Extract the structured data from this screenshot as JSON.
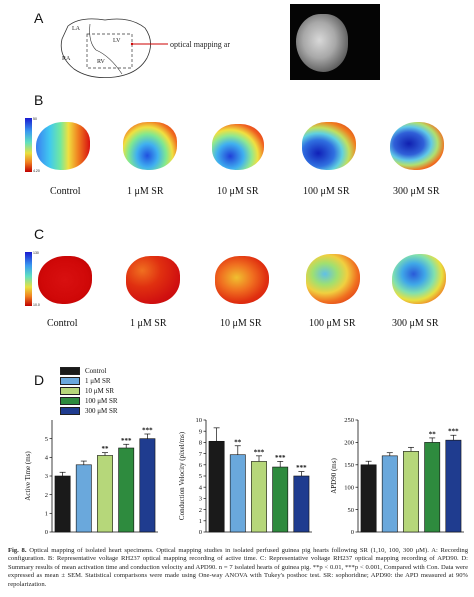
{
  "panels": {
    "a": {
      "letter": "A",
      "labels": {
        "la": "LA",
        "lv": "LV",
        "ra": "RA",
        "rv": "RV",
        "area": "optical mapping area"
      }
    },
    "b": {
      "letter": "B",
      "cbar_top": "50",
      "cbar_bottom": "4.20",
      "conditions": [
        "Control",
        "1 μM SR",
        "10 μM SR",
        "100 μM SR",
        "300 μM SR"
      ]
    },
    "c": {
      "letter": "C",
      "cbar_top": "130",
      "cbar_bottom": "10.0",
      "conditions": [
        "Control",
        "1 μM SR",
        "10 μM SR",
        "100 μM SR",
        "300 μM SR"
      ]
    },
    "d": {
      "letter": "D"
    }
  },
  "legend": [
    "Control",
    "1 μM SR",
    "10 μM SR",
    "100 μM SR",
    "300 μM SR"
  ],
  "colors": [
    "#1a1a1a",
    "#6aa8dc",
    "#b6d77a",
    "#2e8b3e",
    "#1f3c8f"
  ],
  "chart_data": [
    {
      "type": "bar",
      "categories": [
        "Control",
        "1 μM SR",
        "10 μM SR",
        "100 μM SR",
        "300 μM SR"
      ],
      "values": [
        3.0,
        3.6,
        4.1,
        4.5,
        5.0
      ],
      "errors": [
        0.2,
        0.2,
        0.15,
        0.2,
        0.25
      ],
      "significance": [
        "",
        "",
        "**",
        "***",
        "***"
      ],
      "ylabel": "Active Time (ms)",
      "ylim": [
        0,
        6
      ],
      "yticks": [
        "0",
        "1",
        "2",
        "3",
        "4",
        "5"
      ]
    },
    {
      "type": "bar",
      "categories": [
        "Control",
        "1 μM SR",
        "10 μM SR",
        "100 μM SR",
        "300 μM SR"
      ],
      "values": [
        8.1,
        6.9,
        6.3,
        5.8,
        5.0
      ],
      "errors": [
        1.2,
        0.8,
        0.5,
        0.5,
        0.4
      ],
      "significance": [
        "",
        "**",
        "***",
        "***",
        "***"
      ],
      "ylabel": "Conduction Velocity (pixel/ms)",
      "ylim": [
        0,
        10
      ],
      "yticks": [
        "0",
        "1",
        "2",
        "3",
        "4",
        "5",
        "6",
        "7",
        "8",
        "9",
        "10"
      ]
    },
    {
      "type": "bar",
      "categories": [
        "Control",
        "1 μM SR",
        "10 μM SR",
        "100 μM SR",
        "300 μM SR"
      ],
      "values": [
        150,
        170,
        180,
        200,
        205
      ],
      "errors": [
        8,
        7,
        9,
        10,
        11
      ],
      "significance": [
        "",
        "",
        "",
        "**",
        "***"
      ],
      "ylabel": "APD90 (ms)",
      "ylim": [
        0,
        250
      ],
      "yticks": [
        "0",
        "50",
        "100",
        "150",
        "200",
        "250"
      ]
    }
  ],
  "caption": {
    "label": "Fig. 8.",
    "text": "Optical mapping of isolated heart specimens. Optical mapping studies in isolated perfused guinea pig hearts following SR (1,10, 100, 300 μM). A: Recording configuration. B: Representative voltage RH237 optical mapping recording of active time. C: Representative voltage RH237 optical mapping recording of APD90. D: Summary results of mean activation time and conduction velocity and APD90. n = 7 isolated hearts of guinea pig. **p < 0.01, ***p < 0.001, Compared with Con. Data were expressed as mean ± SEM. Statistical comparisons were made using One-way ANOVA with Tukey's posthoc test. SR: sophoridine; APD90: the APD measured at 90% repolarization."
  }
}
